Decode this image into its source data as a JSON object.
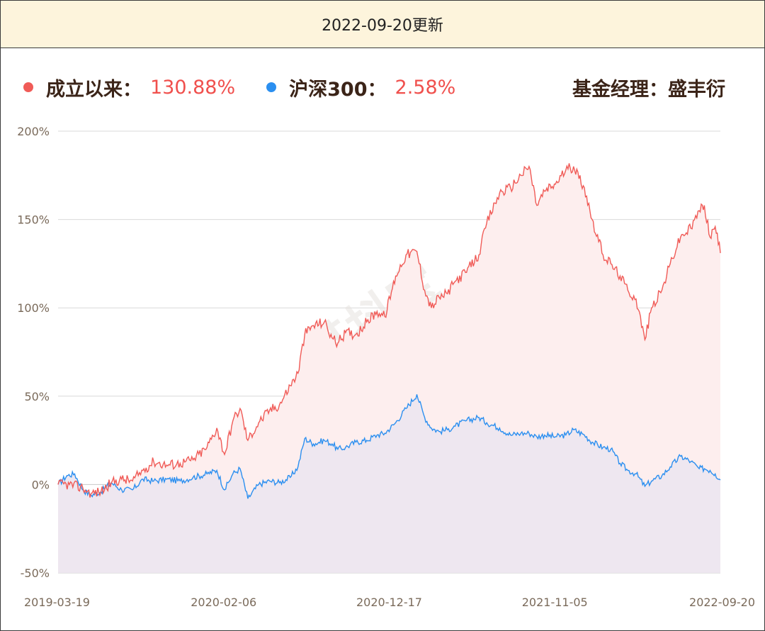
{
  "header": {
    "date_text": "2022-09-20更新"
  },
  "legend": {
    "fund_label": "成立以来：",
    "fund_value": "130.88%",
    "index_label": "沪深300：",
    "index_value": "2.58%",
    "manager_text": "基金经理：盛丰衍"
  },
  "colors": {
    "fund": "#f05b57",
    "index": "#2b8ff0",
    "fund_fill": "#fdeeee",
    "index_fill": "#ece6ef",
    "grid": "#d9d9d9"
  },
  "chart_data": {
    "type": "line",
    "title": "",
    "xlabel": "",
    "ylabel": "",
    "ylim": [
      -50,
      200
    ],
    "yticks": [
      "200%",
      "150%",
      "100%",
      "50%",
      "0%",
      "-50%"
    ],
    "xticks": [
      "2019-03-19",
      "2020-02-06",
      "2020-12-17",
      "2021-11-05",
      "2022-09-20"
    ],
    "watermark": "基抖宝",
    "x_start": "2019-03-19",
    "x_end": "2022-09-20",
    "series": [
      {
        "name": "成立以来",
        "points": [
          [
            "2019-03-19",
            0
          ],
          [
            "2019-04-10",
            0
          ],
          [
            "2019-05-06",
            -2
          ],
          [
            "2019-05-22",
            -5
          ],
          [
            "2019-06-10",
            -4
          ],
          [
            "2019-06-30",
            1
          ],
          [
            "2019-07-20",
            3
          ],
          [
            "2019-08-10",
            2
          ],
          [
            "2019-08-30",
            8
          ],
          [
            "2019-09-20",
            13
          ],
          [
            "2019-10-15",
            11
          ],
          [
            "2019-11-10",
            12
          ],
          [
            "2019-12-05",
            14
          ],
          [
            "2020-01-01",
            21
          ],
          [
            "2020-01-20",
            32
          ],
          [
            "2020-02-04",
            17
          ],
          [
            "2020-02-20",
            36
          ],
          [
            "2020-03-05",
            43
          ],
          [
            "2020-03-20",
            25
          ],
          [
            "2020-04-10",
            35
          ],
          [
            "2020-05-01",
            42
          ],
          [
            "2020-05-20",
            45
          ],
          [
            "2020-06-10",
            56
          ],
          [
            "2020-06-25",
            63
          ],
          [
            "2020-07-08",
            85
          ],
          [
            "2020-07-25",
            90
          ],
          [
            "2020-08-15",
            92
          ],
          [
            "2020-08-30",
            83
          ],
          [
            "2020-09-10",
            80
          ],
          [
            "2020-09-25",
            86
          ],
          [
            "2020-10-15",
            85
          ],
          [
            "2020-11-05",
            92
          ],
          [
            "2020-11-25",
            98
          ],
          [
            "2020-12-10",
            95
          ],
          [
            "2020-12-31",
            118
          ],
          [
            "2021-01-20",
            130
          ],
          [
            "2021-02-10",
            132
          ],
          [
            "2021-02-25",
            110
          ],
          [
            "2021-03-10",
            100
          ],
          [
            "2021-03-25",
            106
          ],
          [
            "2021-04-10",
            108
          ],
          [
            "2021-04-25",
            115
          ],
          [
            "2021-05-15",
            120
          ],
          [
            "2021-06-10",
            130
          ],
          [
            "2021-06-25",
            148
          ],
          [
            "2021-07-20",
            165
          ],
          [
            "2021-08-10",
            168
          ],
          [
            "2021-08-30",
            175
          ],
          [
            "2021-09-15",
            180
          ],
          [
            "2021-09-30",
            158
          ],
          [
            "2021-10-15",
            166
          ],
          [
            "2021-11-05",
            170
          ],
          [
            "2021-11-25",
            178
          ],
          [
            "2021-12-10",
            180
          ],
          [
            "2021-12-31",
            168
          ],
          [
            "2022-01-15",
            150
          ],
          [
            "2022-02-05",
            130
          ],
          [
            "2022-02-20",
            125
          ],
          [
            "2022-03-10",
            118
          ],
          [
            "2022-03-25",
            110
          ],
          [
            "2022-04-10",
            105
          ],
          [
            "2022-04-27",
            82
          ],
          [
            "2022-05-10",
            100
          ],
          [
            "2022-05-30",
            110
          ],
          [
            "2022-06-15",
            125
          ],
          [
            "2022-07-05",
            140
          ],
          [
            "2022-07-25",
            145
          ],
          [
            "2022-08-10",
            155
          ],
          [
            "2022-08-20",
            158
          ],
          [
            "2022-08-31",
            140
          ],
          [
            "2022-09-10",
            146
          ],
          [
            "2022-09-20",
            131
          ]
        ]
      },
      {
        "name": "沪深300",
        "points": [
          [
            "2019-03-19",
            0
          ],
          [
            "2019-04-05",
            5
          ],
          [
            "2019-04-20",
            6
          ],
          [
            "2019-05-06",
            -3
          ],
          [
            "2019-05-22",
            -6
          ],
          [
            "2019-06-10",
            -4
          ],
          [
            "2019-06-30",
            1
          ],
          [
            "2019-07-20",
            -3
          ],
          [
            "2019-08-10",
            -3
          ],
          [
            "2019-08-30",
            3
          ],
          [
            "2019-09-20",
            2
          ],
          [
            "2019-10-15",
            3
          ],
          [
            "2019-11-10",
            2
          ],
          [
            "2019-12-05",
            4
          ],
          [
            "2020-01-01",
            6
          ],
          [
            "2020-01-20",
            8
          ],
          [
            "2020-02-04",
            -3
          ],
          [
            "2020-02-20",
            6
          ],
          [
            "2020-03-05",
            9
          ],
          [
            "2020-03-20",
            -8
          ],
          [
            "2020-04-10",
            0
          ],
          [
            "2020-05-01",
            2
          ],
          [
            "2020-05-20",
            1
          ],
          [
            "2020-06-10",
            4
          ],
          [
            "2020-06-25",
            10
          ],
          [
            "2020-07-08",
            26
          ],
          [
            "2020-07-25",
            23
          ],
          [
            "2020-08-15",
            25
          ],
          [
            "2020-08-30",
            23
          ],
          [
            "2020-09-10",
            20
          ],
          [
            "2020-09-25",
            21
          ],
          [
            "2020-10-15",
            24
          ],
          [
            "2020-11-05",
            25
          ],
          [
            "2020-11-25",
            28
          ],
          [
            "2020-12-10",
            29
          ],
          [
            "2020-12-31",
            35
          ],
          [
            "2021-01-20",
            43
          ],
          [
            "2021-02-10",
            51
          ],
          [
            "2021-02-25",
            38
          ],
          [
            "2021-03-10",
            32
          ],
          [
            "2021-03-25",
            30
          ],
          [
            "2021-04-10",
            31
          ],
          [
            "2021-04-25",
            33
          ],
          [
            "2021-05-15",
            36
          ],
          [
            "2021-06-10",
            38
          ],
          [
            "2021-06-25",
            35
          ],
          [
            "2021-07-20",
            32
          ],
          [
            "2021-08-10",
            28
          ],
          [
            "2021-08-30",
            29
          ],
          [
            "2021-09-15",
            29
          ],
          [
            "2021-09-30",
            27
          ],
          [
            "2021-10-15",
            28
          ],
          [
            "2021-11-05",
            27
          ],
          [
            "2021-11-25",
            28
          ],
          [
            "2021-12-10",
            31
          ],
          [
            "2021-12-31",
            28
          ],
          [
            "2022-01-15",
            24
          ],
          [
            "2022-02-05",
            21
          ],
          [
            "2022-02-20",
            20
          ],
          [
            "2022-03-10",
            12
          ],
          [
            "2022-03-25",
            8
          ],
          [
            "2022-04-10",
            6
          ],
          [
            "2022-04-27",
            -1
          ],
          [
            "2022-05-10",
            2
          ],
          [
            "2022-05-30",
            5
          ],
          [
            "2022-06-15",
            10
          ],
          [
            "2022-07-05",
            16
          ],
          [
            "2022-07-25",
            13
          ],
          [
            "2022-08-10",
            9
          ],
          [
            "2022-08-20",
            9
          ],
          [
            "2022-08-31",
            8
          ],
          [
            "2022-09-10",
            6
          ],
          [
            "2022-09-20",
            2.58
          ]
        ]
      }
    ]
  }
}
